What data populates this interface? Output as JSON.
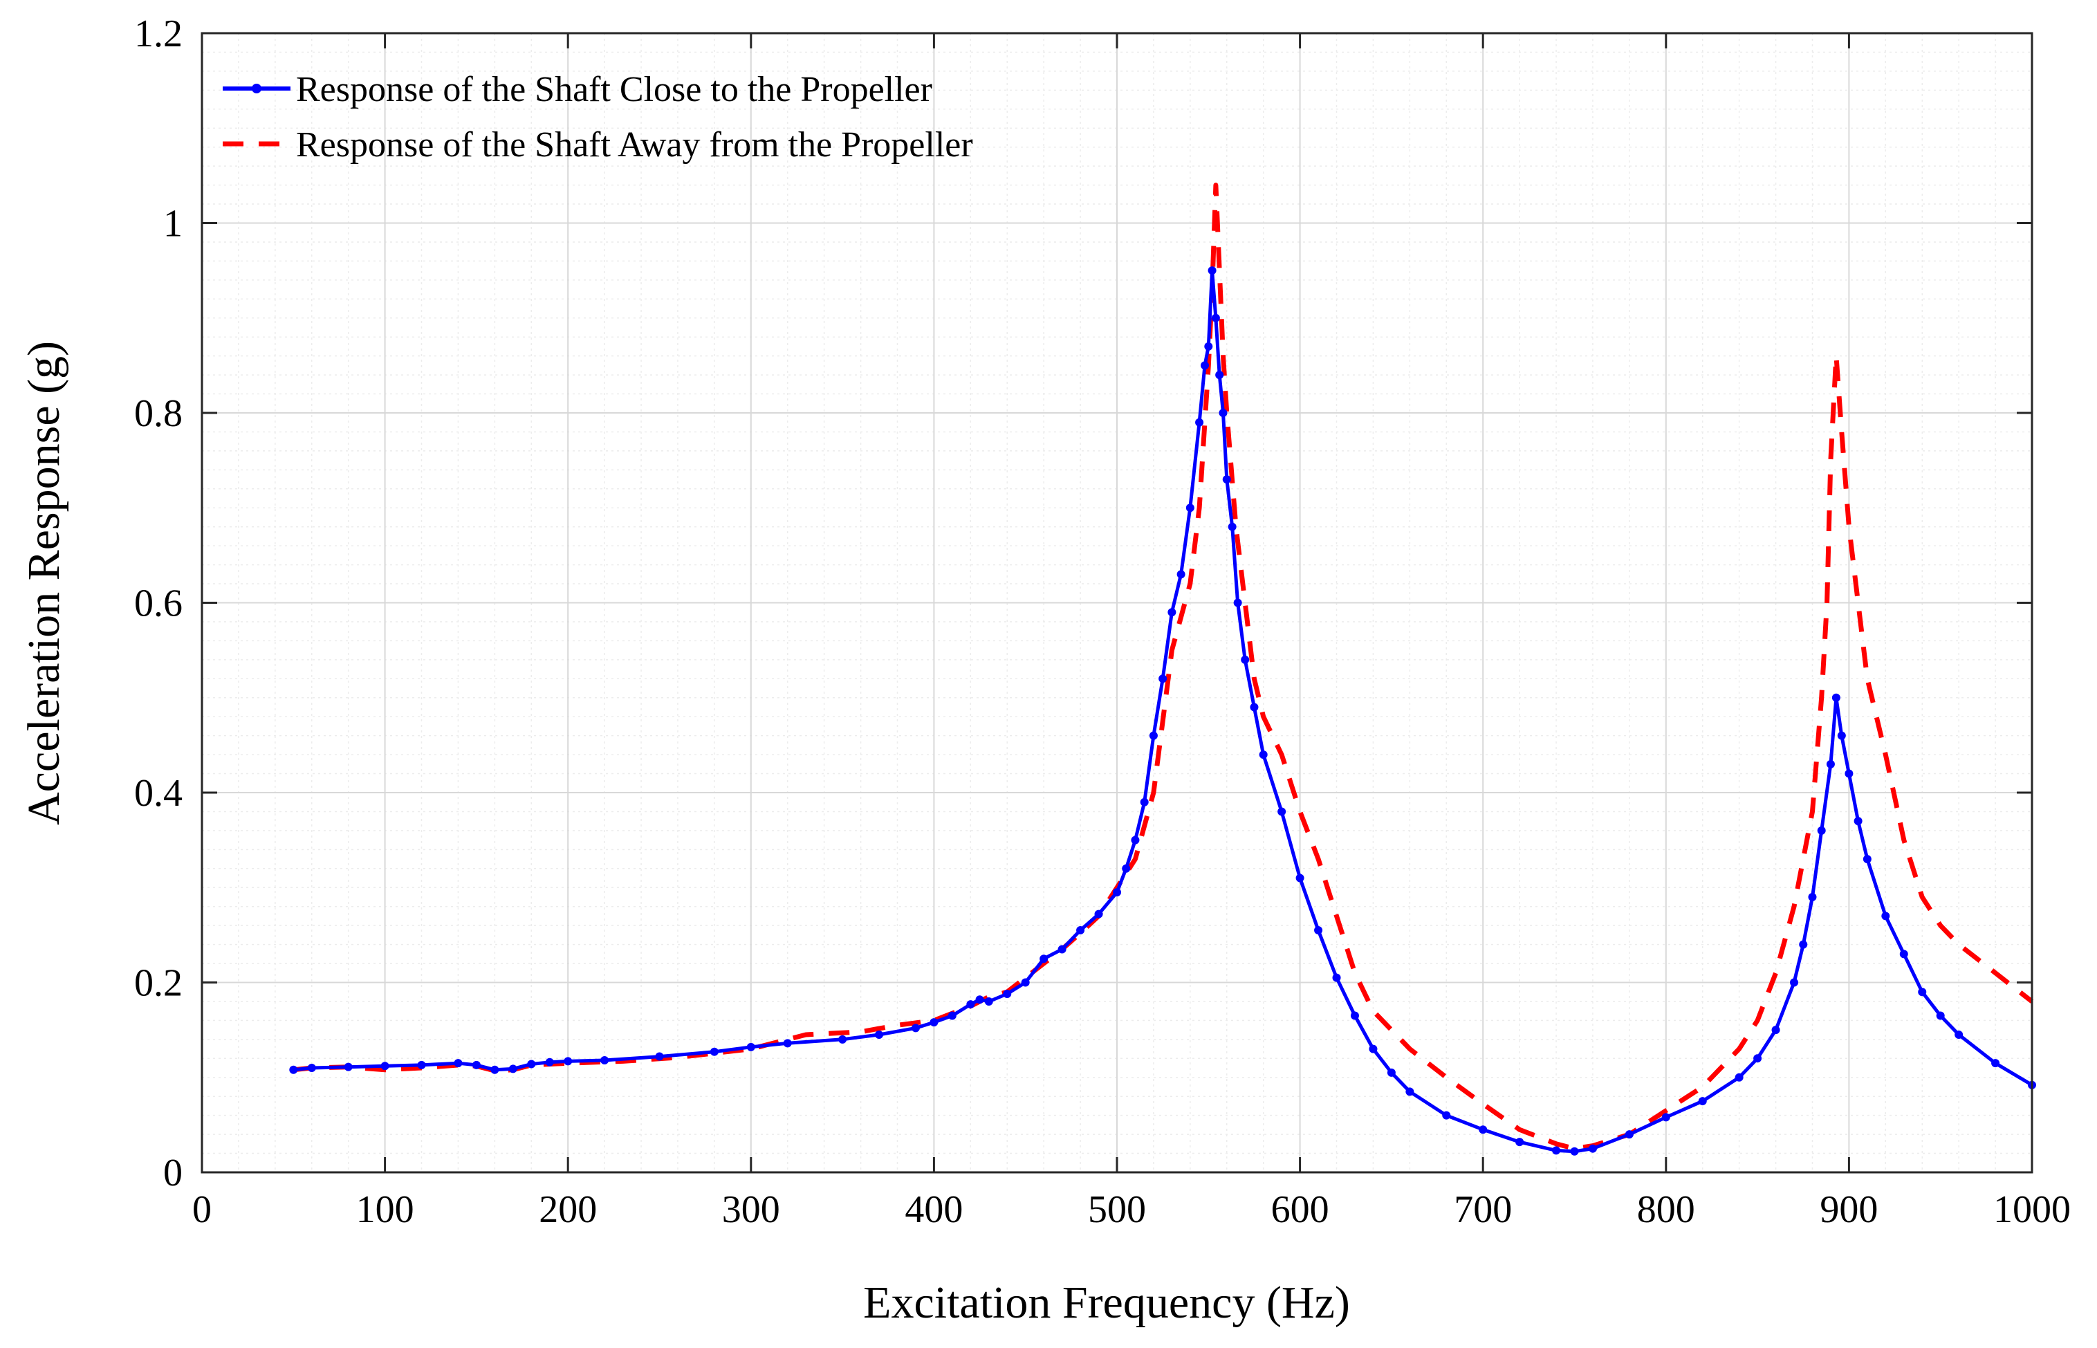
{
  "chart_data": {
    "type": "line",
    "title": "",
    "xlabel": "Excitation Frequency (Hz)",
    "ylabel": "Acceleration Response (g)",
    "xlim": [
      0,
      1000
    ],
    "ylim": [
      0,
      1.2
    ],
    "x_ticks": [
      "0",
      "100",
      "200",
      "300",
      "400",
      "500",
      "600",
      "700",
      "800",
      "900",
      "1000"
    ],
    "y_ticks": [
      "0",
      "0.2",
      "0.4",
      "0.6",
      "0.8",
      "1",
      "1.2"
    ],
    "grid": true,
    "minor_grid": true,
    "legend_position": "top-left",
    "series": [
      {
        "name": "Response of the Shaft Close to the Propeller",
        "color": "#0000ff",
        "style": "solid-with-point-markers",
        "x": [
          50,
          60,
          80,
          100,
          120,
          140,
          150,
          160,
          170,
          180,
          190,
          200,
          220,
          250,
          280,
          300,
          320,
          350,
          370,
          390,
          400,
          410,
          420,
          425,
          430,
          440,
          450,
          460,
          470,
          480,
          490,
          500,
          505,
          510,
          515,
          520,
          525,
          530,
          535,
          540,
          545,
          548,
          550,
          552,
          554,
          556,
          558,
          560,
          563,
          566,
          570,
          575,
          580,
          590,
          600,
          610,
          620,
          630,
          640,
          650,
          660,
          680,
          700,
          720,
          740,
          750,
          760,
          780,
          800,
          820,
          840,
          850,
          860,
          870,
          875,
          880,
          885,
          890,
          893,
          896,
          900,
          905,
          910,
          920,
          930,
          940,
          950,
          960,
          980,
          1000
        ],
        "y": [
          0.108,
          0.11,
          0.111,
          0.112,
          0.113,
          0.115,
          0.113,
          0.108,
          0.109,
          0.114,
          0.116,
          0.117,
          0.118,
          0.122,
          0.127,
          0.132,
          0.136,
          0.14,
          0.145,
          0.152,
          0.158,
          0.165,
          0.177,
          0.182,
          0.18,
          0.188,
          0.2,
          0.225,
          0.235,
          0.255,
          0.272,
          0.295,
          0.32,
          0.35,
          0.39,
          0.46,
          0.52,
          0.59,
          0.63,
          0.7,
          0.79,
          0.85,
          0.87,
          0.95,
          0.9,
          0.84,
          0.8,
          0.73,
          0.68,
          0.6,
          0.54,
          0.49,
          0.44,
          0.38,
          0.31,
          0.255,
          0.205,
          0.165,
          0.13,
          0.105,
          0.085,
          0.06,
          0.045,
          0.032,
          0.023,
          0.022,
          0.025,
          0.04,
          0.058,
          0.075,
          0.1,
          0.12,
          0.15,
          0.2,
          0.24,
          0.29,
          0.36,
          0.43,
          0.5,
          0.46,
          0.42,
          0.37,
          0.33,
          0.27,
          0.23,
          0.19,
          0.165,
          0.145,
          0.115,
          0.092
        ]
      },
      {
        "name": "Response of the Shaft Away from the Propeller",
        "color": "#ff0000",
        "style": "dashed",
        "x": [
          50,
          60,
          80,
          100,
          120,
          140,
          150,
          160,
          170,
          180,
          200,
          230,
          260,
          300,
          330,
          360,
          380,
          400,
          420,
          430,
          440,
          450,
          460,
          470,
          480,
          490,
          500,
          510,
          520,
          530,
          540,
          545,
          550,
          552,
          554,
          556,
          558,
          560,
          565,
          570,
          575,
          580,
          590,
          600,
          610,
          620,
          630,
          640,
          660,
          680,
          700,
          720,
          740,
          750,
          760,
          780,
          800,
          820,
          840,
          850,
          860,
          870,
          880,
          885,
          888,
          890,
          893,
          896,
          900,
          905,
          910,
          920,
          930,
          940,
          950,
          960,
          980,
          1000
        ],
        "y": [
          0.108,
          0.11,
          0.111,
          0.108,
          0.11,
          0.113,
          0.112,
          0.107,
          0.108,
          0.113,
          0.115,
          0.117,
          0.121,
          0.13,
          0.145,
          0.148,
          0.155,
          0.16,
          0.175,
          0.185,
          0.19,
          0.205,
          0.22,
          0.235,
          0.252,
          0.27,
          0.3,
          0.33,
          0.4,
          0.55,
          0.62,
          0.7,
          0.85,
          0.93,
          1.04,
          0.95,
          0.86,
          0.8,
          0.68,
          0.6,
          0.52,
          0.48,
          0.44,
          0.38,
          0.33,
          0.27,
          0.21,
          0.17,
          0.13,
          0.1,
          0.072,
          0.045,
          0.03,
          0.025,
          0.028,
          0.04,
          0.065,
          0.09,
          0.13,
          0.16,
          0.21,
          0.28,
          0.38,
          0.5,
          0.6,
          0.75,
          0.86,
          0.78,
          0.68,
          0.6,
          0.52,
          0.44,
          0.35,
          0.29,
          0.26,
          0.24,
          0.21,
          0.18
        ]
      }
    ]
  }
}
